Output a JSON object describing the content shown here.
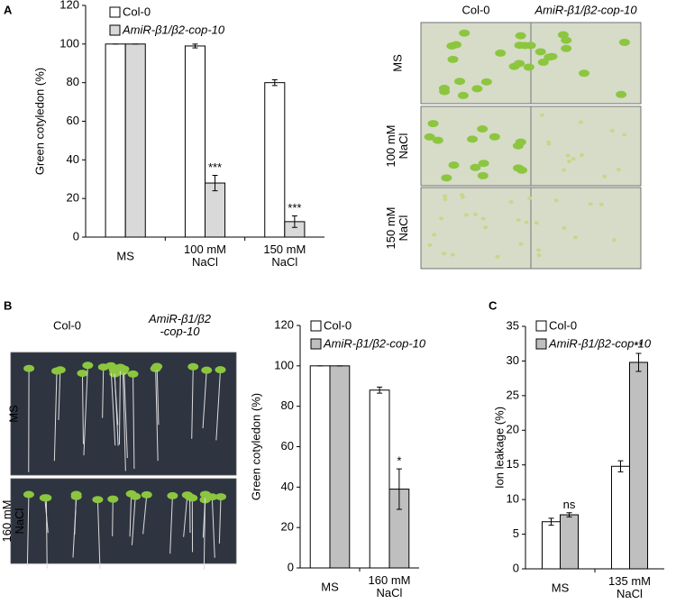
{
  "panel_labels": [
    "A",
    "B",
    "C"
  ],
  "photos": [
    {
      "columns": [
        "Col-0",
        "AmiR-β1/β2-cop-10"
      ],
      "rows": [
        "MS",
        "100 mM\nNaCl",
        "150 mM\nNaCl"
      ]
    },
    {
      "columns": [
        "Col-0",
        "AmiR-β1/β2\n-cop-10"
      ],
      "rows": [
        "MS",
        "160 mM\nNaCl"
      ]
    }
  ],
  "chart_data": [
    {
      "type": "bar",
      "y_label": "Green cotyledon (%)",
      "categories": [
        "MS",
        "100 mM\nNaCl",
        "150 mM\nNaCl"
      ],
      "series": [
        {
          "name": "Col-0",
          "color": "#ffffff",
          "values": [
            100,
            99,
            80
          ],
          "errors": [
            0,
            1,
            1.5
          ],
          "sig": [
            null,
            null,
            null
          ]
        },
        {
          "name": "AmiR-β1/β2-cop-10",
          "color": "#d9d9d9",
          "values": [
            100,
            28,
            8
          ],
          "errors": [
            0,
            4,
            3
          ],
          "sig": [
            null,
            "***",
            "***"
          ]
        }
      ],
      "ylim": [
        0,
        120
      ],
      "yticks": [
        0,
        20,
        40,
        60,
        80,
        100,
        120
      ]
    },
    {
      "type": "bar",
      "y_label": "Green cotyledon (%)",
      "categories": [
        "MS",
        "160 mM\nNaCl"
      ],
      "series": [
        {
          "name": "Col-0",
          "color": "#ffffff",
          "values": [
            100,
            88
          ],
          "errors": [
            0,
            1.5
          ],
          "sig": [
            null,
            null
          ]
        },
        {
          "name": "AmiR-β1/β2-cop-10",
          "color": "#bfbfbf",
          "values": [
            100,
            39
          ],
          "errors": [
            0,
            10
          ],
          "sig": [
            null,
            "*"
          ]
        }
      ],
      "ylim": [
        0,
        120
      ],
      "yticks": [
        0,
        20,
        40,
        60,
        80,
        100,
        120
      ]
    },
    {
      "type": "bar",
      "y_label": "Ion leakage (%)",
      "categories": [
        "MS",
        "135 mM\nNaCl"
      ],
      "series": [
        {
          "name": "Col-0",
          "color": "#ffffff",
          "values": [
            6.8,
            14.8
          ],
          "errors": [
            0.5,
            0.8
          ],
          "sig": [
            null,
            null
          ]
        },
        {
          "name": "AmiR-β1/β2-cop-10",
          "color": "#bfbfbf",
          "values": [
            7.8,
            29.8
          ],
          "errors": [
            0.3,
            1.3
          ],
          "sig": [
            "ns",
            "**"
          ]
        }
      ],
      "ylim": [
        0,
        35
      ],
      "yticks": [
        0,
        5,
        10,
        15,
        20,
        25,
        30,
        35
      ]
    }
  ]
}
